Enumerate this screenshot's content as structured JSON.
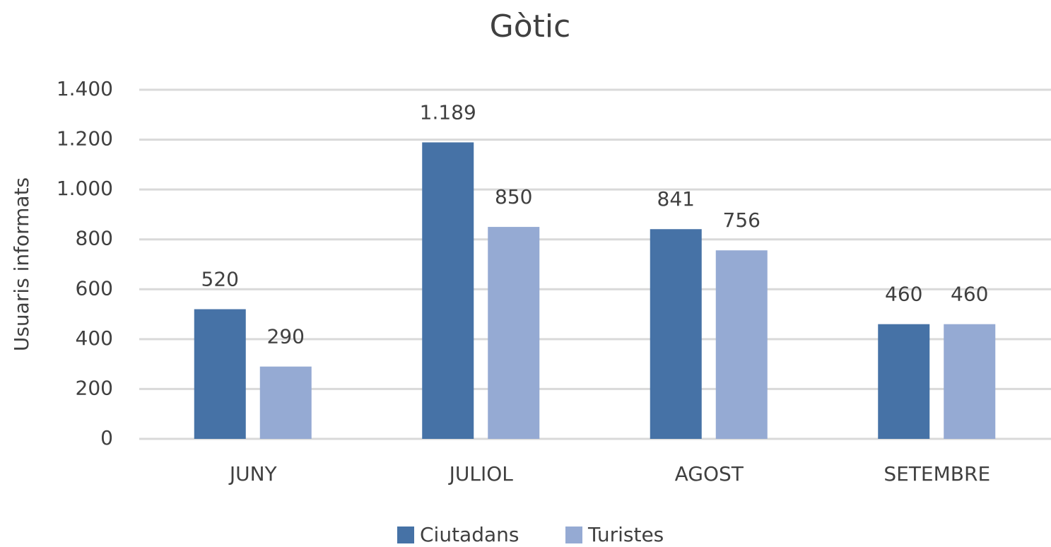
{
  "chart_data": {
    "type": "bar",
    "title": "Gòtic",
    "y_label": "Usuaris informats",
    "categories": [
      "JUNY",
      "JULIOL",
      "AGOST",
      "SETEMBRE"
    ],
    "series": [
      {
        "name": "Ciutadans",
        "color": "#4672a6",
        "values": [
          520,
          1189,
          841,
          460
        ],
        "value_labels": [
          "520",
          "1.189",
          "841",
          "460"
        ]
      },
      {
        "name": "Turistes",
        "color": "#95aad3",
        "values": [
          290,
          850,
          756,
          460
        ]
      }
    ],
    "ylim": [
      0,
      1400
    ],
    "yticks": [
      0,
      200,
      400,
      600,
      800,
      {
        "value": 1000,
        "label": "1.000"
      },
      {
        "value": 1200,
        "label": "1.200"
      },
      {
        "value": 1400,
        "label": "1.400"
      }
    ],
    "grid": true,
    "legend": "bottom"
  }
}
